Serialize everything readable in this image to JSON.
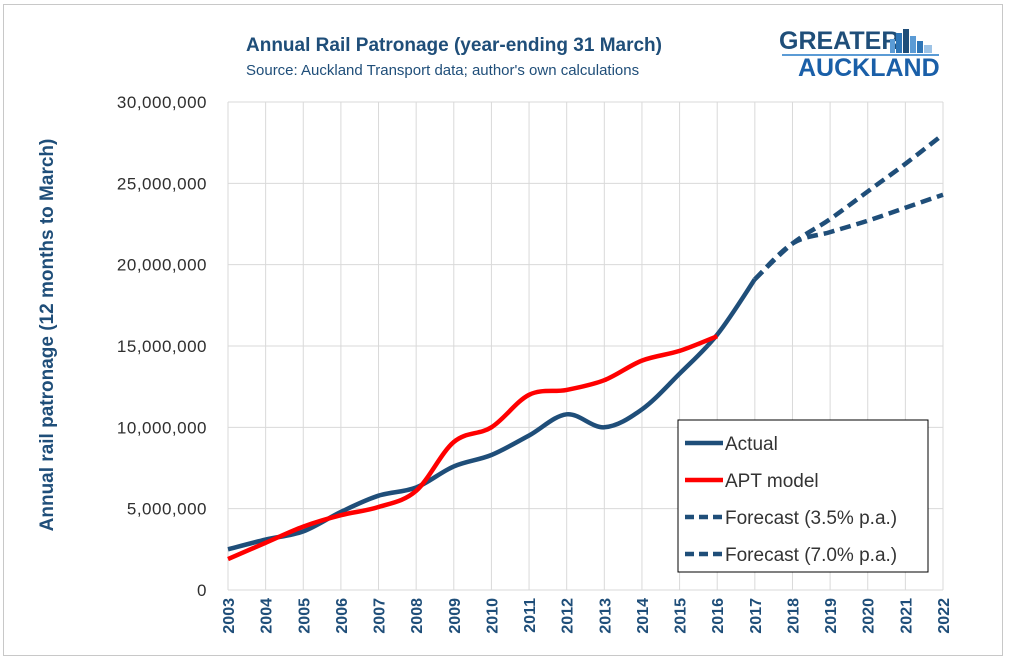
{
  "logo": {
    "line1": "GREATER",
    "line2": "AUCKLAND",
    "color_top": "#1f4e79",
    "color_bottom": "#1a5fa8"
  },
  "chart_data": {
    "type": "line",
    "title": "Annual Rail Patronage (year-ending 31 March)",
    "subtitle": "Source: Auckland Transport data; author's own calculations",
    "xlabel": "",
    "ylabel": "Annual rail patronage (12 months to March)",
    "ylim": [
      0,
      30000000
    ],
    "yticks": [
      0,
      5000000,
      10000000,
      15000000,
      20000000,
      25000000,
      30000000
    ],
    "ytick_labels": [
      "0",
      "5,000,000",
      "10,000,000",
      "15,000,000",
      "20,000,000",
      "25,000,000",
      "30,000,000"
    ],
    "categories": [
      "2003",
      "2004",
      "2005",
      "2006",
      "2007",
      "2008",
      "2009",
      "2010",
      "2011",
      "2012",
      "2013",
      "2014",
      "2015",
      "2016",
      "2017",
      "2018",
      "2019",
      "2020",
      "2021",
      "2022"
    ],
    "grid": true,
    "legend_position": "bottom-right",
    "series": [
      {
        "name": "Actual",
        "style": "solid",
        "color": "#1f4e79",
        "x": [
          "2003",
          "2004",
          "2005",
          "2006",
          "2007",
          "2008",
          "2009",
          "2010",
          "2011",
          "2012",
          "2013",
          "2014",
          "2015",
          "2016",
          "2017"
        ],
        "values": [
          2500000,
          3100000,
          3600000,
          4800000,
          5800000,
          6300000,
          7600000,
          8300000,
          9500000,
          10800000,
          10000000,
          11100000,
          13300000,
          15700000,
          19100000
        ]
      },
      {
        "name": "APT model",
        "style": "solid",
        "color": "#ff0000",
        "x": [
          "2003",
          "2004",
          "2005",
          "2006",
          "2007",
          "2008",
          "2009",
          "2010",
          "2011",
          "2012",
          "2013",
          "2014",
          "2015",
          "2016"
        ],
        "values": [
          1900000,
          2900000,
          3900000,
          4600000,
          5100000,
          6100000,
          9100000,
          10000000,
          12000000,
          12300000,
          12900000,
          14100000,
          14700000,
          15600000
        ]
      },
      {
        "name": "Forecast (3.5% p.a.)",
        "style": "dashed",
        "color": "#1f4e79",
        "x": [
          "2017",
          "2018",
          "2019",
          "2020",
          "2021",
          "2022"
        ],
        "values": [
          19100000,
          21300000,
          22000000,
          22700000,
          23500000,
          24300000
        ]
      },
      {
        "name": "Forecast (7.0% p.a.)",
        "style": "dashed",
        "color": "#1f4e79",
        "x": [
          "2017",
          "2018",
          "2019",
          "2020",
          "2021",
          "2022"
        ],
        "values": [
          19100000,
          21300000,
          22800000,
          24500000,
          26200000,
          28000000
        ]
      }
    ]
  }
}
